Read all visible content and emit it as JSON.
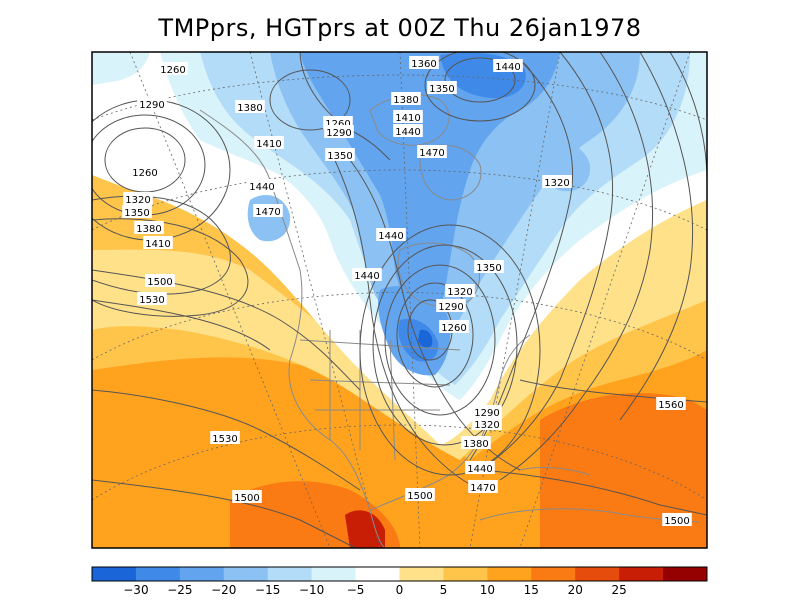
{
  "title": "TMPprs, HGTprs at 00Z Thu 26jan1978",
  "colorbar": {
    "colors": [
      "#1a66d8",
      "#3f8ae8",
      "#62a4ee",
      "#8cc1f3",
      "#b3dcf8",
      "#d9f3fb",
      "#ffffff",
      "#ffe18a",
      "#ffc44a",
      "#ffa31f",
      "#fa7a13",
      "#e64d0c",
      "#c81e06",
      "#950000"
    ],
    "tick_labels": [
      "-30",
      "-25",
      "-20",
      "-15",
      "-10",
      "-5",
      "0",
      "5",
      "10",
      "15",
      "20",
      "25"
    ]
  },
  "colors": {
    "land_outline": "#8a8a8a",
    "contour": "#555555",
    "frame": "#000000"
  },
  "contour_labels": [
    "1260",
    "1290",
    "1380",
    "1410",
    "1440",
    "1470",
    "1260",
    "1320",
    "1350",
    "1380",
    "1410",
    "1500",
    "1530",
    "1360",
    "1440",
    "1380",
    "1350",
    "1410",
    "1440",
    "1470",
    "1260",
    "1290",
    "1350",
    "1320",
    "1440",
    "1440",
    "1350",
    "1320",
    "1290",
    "1260",
    "1290",
    "1320",
    "1380",
    "1440",
    "1470",
    "1560",
    "1530",
    "1500",
    "1500",
    "1500"
  ]
}
